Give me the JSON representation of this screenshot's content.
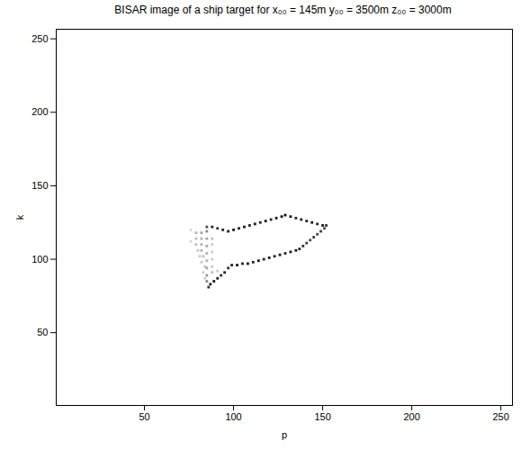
{
  "chart_data": {
    "type": "heatmap",
    "title": "BISAR image of a ship target for x₀₀ = 145m y₀₀ = 3500m z₀₀ = 3000m",
    "x_label": "p",
    "y_label": "k",
    "xlim": [
      0.5,
      256.5
    ],
    "ylim": [
      0.5,
      256.5
    ],
    "xticks": [
      50,
      100,
      150,
      200,
      250
    ],
    "yticks": [
      50,
      100,
      150,
      200,
      250
    ],
    "clim": [
      0,
      1
    ],
    "grid": false,
    "cells": [
      [
        97,
        119,
        0.9
      ],
      [
        100,
        120,
        0.9
      ],
      [
        103,
        121,
        0.85
      ],
      [
        106,
        122,
        0.9
      ],
      [
        109,
        123,
        0.85
      ],
      [
        112,
        124,
        0.9
      ],
      [
        115,
        125,
        0.85
      ],
      [
        118,
        126,
        0.9
      ],
      [
        121,
        127,
        0.85
      ],
      [
        124,
        128,
        0.9
      ],
      [
        127,
        129,
        0.9
      ],
      [
        129,
        130,
        0.95
      ],
      [
        132,
        129,
        0.9
      ],
      [
        135,
        128,
        0.85
      ],
      [
        138,
        127,
        0.9
      ],
      [
        141,
        126,
        0.85
      ],
      [
        144,
        125,
        0.9
      ],
      [
        147,
        124,
        0.85
      ],
      [
        150,
        123,
        0.9
      ],
      [
        152,
        123,
        0.8
      ],
      [
        151,
        121,
        0.7
      ],
      [
        149,
        119,
        0.75
      ],
      [
        147,
        117,
        0.7
      ],
      [
        145,
        115,
        0.75
      ],
      [
        143,
        113,
        0.7
      ],
      [
        141,
        111,
        0.75
      ],
      [
        139,
        109,
        0.8
      ],
      [
        137,
        107,
        0.85
      ],
      [
        135,
        106,
        0.9
      ],
      [
        132,
        105,
        0.9
      ],
      [
        129,
        104,
        0.85
      ],
      [
        126,
        103,
        0.9
      ],
      [
        123,
        102,
        0.85
      ],
      [
        120,
        101,
        0.9
      ],
      [
        117,
        100,
        0.85
      ],
      [
        114,
        99,
        0.9
      ],
      [
        111,
        98,
        0.85
      ],
      [
        108,
        97,
        0.9
      ],
      [
        105,
        97,
        0.85
      ],
      [
        102,
        96,
        0.9
      ],
      [
        99,
        96,
        0.85
      ],
      [
        97,
        94,
        0.8
      ],
      [
        95,
        91,
        0.85
      ],
      [
        93,
        89,
        0.8
      ],
      [
        91,
        87,
        0.85
      ],
      [
        89,
        85,
        0.9
      ],
      [
        87,
        83,
        0.85
      ],
      [
        86,
        81,
        0.8
      ],
      [
        85,
        122,
        0.7
      ],
      [
        88,
        122,
        0.85
      ],
      [
        91,
        121,
        0.8
      ],
      [
        94,
        120,
        0.85
      ],
      [
        85,
        119,
        0.45
      ],
      [
        85,
        114,
        0.35
      ],
      [
        85,
        109,
        0.35
      ],
      [
        85,
        104,
        0.3
      ],
      [
        85,
        99,
        0.3
      ],
      [
        85,
        94,
        0.35
      ],
      [
        85,
        89,
        0.4
      ],
      [
        85,
        85,
        0.45
      ],
      [
        79,
        118,
        0.3
      ],
      [
        82,
        118,
        0.35
      ],
      [
        79,
        114,
        0.25
      ],
      [
        82,
        114,
        0.3
      ],
      [
        88,
        114,
        0.25
      ],
      [
        79,
        110,
        0.25
      ],
      [
        82,
        110,
        0.3
      ],
      [
        88,
        110,
        0.2
      ],
      [
        80,
        106,
        0.2
      ],
      [
        82,
        106,
        0.3
      ],
      [
        88,
        105,
        0.2
      ],
      [
        81,
        102,
        0.2
      ],
      [
        83,
        102,
        0.25
      ],
      [
        88,
        100,
        0.2
      ],
      [
        82,
        98,
        0.2
      ],
      [
        84,
        95,
        0.25
      ],
      [
        88,
        95,
        0.2
      ],
      [
        83,
        91,
        0.2
      ],
      [
        88,
        91,
        0.25
      ],
      [
        84,
        87,
        0.2
      ],
      [
        91,
        92,
        0.2
      ],
      [
        76,
        120,
        0.15
      ],
      [
        76,
        112,
        0.15
      ]
    ]
  }
}
